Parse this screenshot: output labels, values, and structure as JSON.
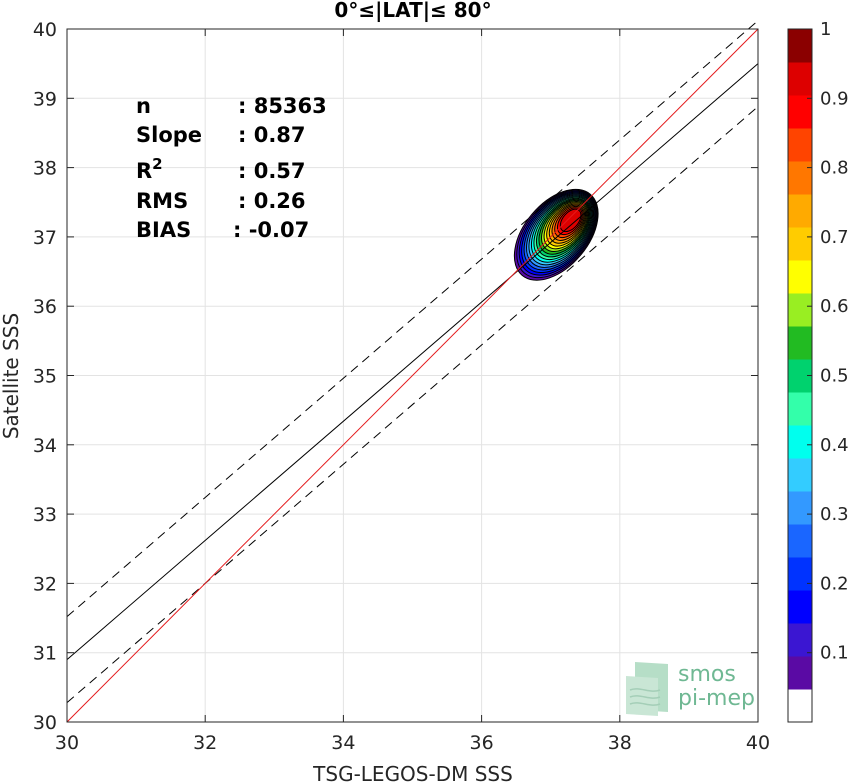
{
  "chart_data": {
    "type": "contour",
    "title": "0°≤|LAT|≤ 80°",
    "xlabel": "TSG-LEGOS-DM SSS",
    "ylabel": "Satellite SSS",
    "xlim": [
      30,
      40
    ],
    "ylim": [
      30,
      40
    ],
    "xticks": [
      "30",
      "32",
      "34",
      "36",
      "38",
      "40"
    ],
    "yticks": [
      "30",
      "31",
      "32",
      "33",
      "34",
      "35",
      "36",
      "37",
      "38",
      "39",
      "40"
    ],
    "grid": true,
    "stats": [
      {
        "key": "n",
        "value": ": 85363"
      },
      {
        "key": "Slope",
        "value": ": 0.87"
      },
      {
        "key": "R",
        "sup": "2",
        "value": ": 0.57"
      },
      {
        "key": "RMS",
        "value": ": 0.26"
      },
      {
        "key": "BIAS",
        "value": ": -0.07"
      }
    ],
    "lines": {
      "identity": {
        "x": [
          30,
          40
        ],
        "y": [
          30,
          40
        ],
        "color": "#e41a1c"
      },
      "fit": {
        "x": [
          30,
          40
        ],
        "y": [
          30.9,
          39.5
        ],
        "color": "#000000"
      },
      "fit_upper": {
        "x": [
          30,
          40
        ],
        "y": [
          31.52,
          40.12
        ],
        "dashed": true
      },
      "fit_lower": {
        "x": [
          30,
          40
        ],
        "y": [
          30.28,
          38.88
        ],
        "dashed": true
      }
    },
    "density_peak": {
      "x": 37.3,
      "y": 37.25
    },
    "contour_levels": [
      0.05,
      0.1,
      0.15,
      0.2,
      0.25,
      0.3,
      0.35,
      0.4,
      0.45,
      0.5,
      0.55,
      0.6,
      0.65,
      0.7,
      0.75,
      0.8,
      0.85,
      0.9,
      0.95
    ],
    "colorbar": {
      "min": 0,
      "max": 1,
      "ticks": [
        "0.1",
        "0.2",
        "0.3",
        "0.4",
        "0.5",
        "0.6",
        "0.7",
        "0.8",
        "0.9",
        "1"
      ],
      "colors": [
        "#ffffff",
        "#5a0aa4",
        "#3b16d2",
        "#0000ff",
        "#0033ff",
        "#1a66ff",
        "#3399ff",
        "#33ccff",
        "#00ffee",
        "#33ffaa",
        "#00d26e",
        "#22bb22",
        "#99ee22",
        "#ffff00",
        "#ffcc00",
        "#ffaa00",
        "#ff7700",
        "#ff4400",
        "#ff0000",
        "#dd0000",
        "#8b0000"
      ]
    }
  },
  "logo": {
    "line1": "smos",
    "line2": "pi-mep"
  }
}
